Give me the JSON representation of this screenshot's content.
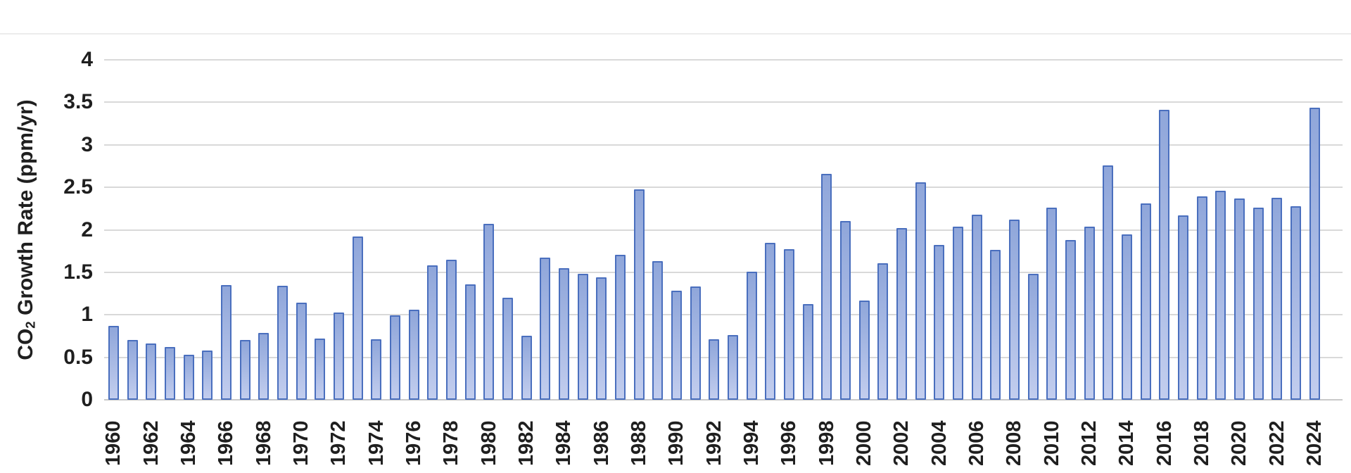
{
  "chart_data": {
    "type": "bar",
    "title": "",
    "xlabel": "",
    "ylabel": "CO₂ Growth Rate (ppm/yr)",
    "ylabel_parts": {
      "prefix": "CO",
      "subscript": "2",
      "suffix": " Growth Rate (ppm/yr)"
    },
    "ylim": [
      0,
      4
    ],
    "ytick_step": 0.5,
    "ytick_labels": [
      "0",
      "0.5",
      "1",
      "1.5",
      "2",
      "2.5",
      "3",
      "3.5",
      "4"
    ],
    "xtick_labels": [
      "1960",
      "1962",
      "1964",
      "1966",
      "1968",
      "1970",
      "1972",
      "1974",
      "1976",
      "1978",
      "1980",
      "1982",
      "1984",
      "1986",
      "1988",
      "1990",
      "1992",
      "1994",
      "1996",
      "1998",
      "2000",
      "2002",
      "2004",
      "2006",
      "2008",
      "2010",
      "2012",
      "2014",
      "2016",
      "2018",
      "2020",
      "2022",
      "2024"
    ],
    "grid": true,
    "legend": "none",
    "bar_color_top": "#8fa6da",
    "bar_color_bottom": "#c2cdee",
    "bar_border_color": "#4a6fbe",
    "gridline_color": "#d9d9d9",
    "axis_line_color": "#c9c9c9",
    "text_color": "#1f1f1f",
    "categories": [
      1960,
      1961,
      1962,
      1963,
      1964,
      1965,
      1966,
      1967,
      1968,
      1969,
      1970,
      1971,
      1972,
      1973,
      1974,
      1975,
      1976,
      1977,
      1978,
      1979,
      1980,
      1981,
      1982,
      1983,
      1984,
      1985,
      1986,
      1987,
      1988,
      1989,
      1990,
      1991,
      1992,
      1993,
      1994,
      1995,
      1996,
      1997,
      1998,
      1999,
      2000,
      2001,
      2002,
      2003,
      2004,
      2005,
      2006,
      2007,
      2008,
      2009,
      2010,
      2011,
      2012,
      2013,
      2014,
      2015,
      2016,
      2017,
      2018,
      2019,
      2020,
      2021,
      2022,
      2023,
      2024
    ],
    "values": [
      0.87,
      0.7,
      0.66,
      0.62,
      0.53,
      0.58,
      1.35,
      0.7,
      0.79,
      1.34,
      1.14,
      0.72,
      1.03,
      1.92,
      0.71,
      0.99,
      1.06,
      1.58,
      1.65,
      1.36,
      2.07,
      1.2,
      0.75,
      1.67,
      1.55,
      1.48,
      1.44,
      1.71,
      2.48,
      1.63,
      1.28,
      1.33,
      0.71,
      0.76,
      1.51,
      1.85,
      1.77,
      1.13,
      2.66,
      2.1,
      1.17,
      1.61,
      2.02,
      2.56,
      1.82,
      2.04,
      2.18,
      1.76,
      2.12,
      1.48,
      2.26,
      1.88,
      2.04,
      2.76,
      1.95,
      2.31,
      3.41,
      2.17,
      2.39,
      2.46,
      2.37,
      2.26,
      2.38,
      2.28,
      3.44
    ]
  }
}
